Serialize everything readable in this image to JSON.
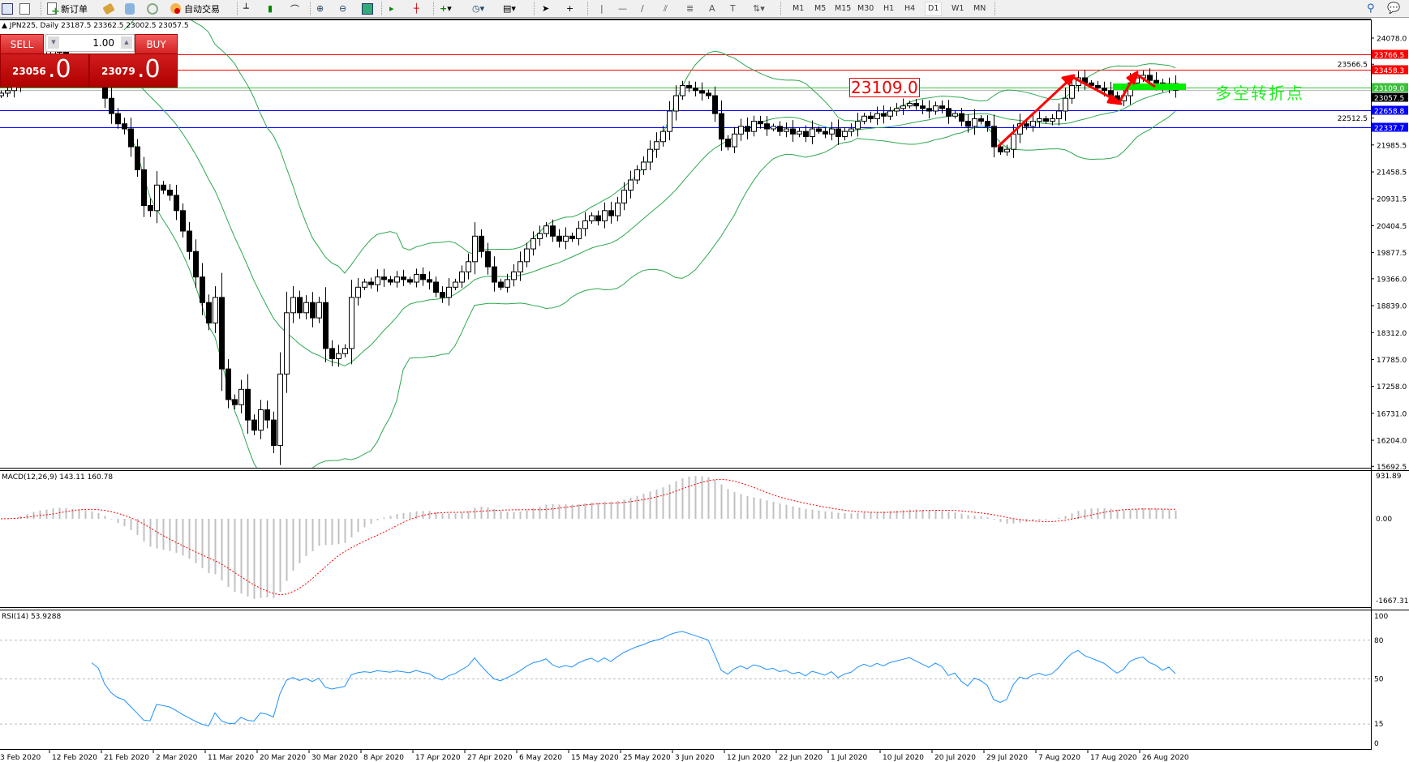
{
  "toolbar": {
    "new_order_label": "新订单",
    "auto_trade_label": "自动交易",
    "timeframes": [
      "M1",
      "M5",
      "M15",
      "M30",
      "H1",
      "H4",
      "D1",
      "W1",
      "MN"
    ],
    "active_timeframe": "D1"
  },
  "chart_header": {
    "symbol": "JPN225",
    "period": "Daily",
    "ohlc_text": "JPN225, Daily  23187.5 23362.5 23002.5 23057.5"
  },
  "trade_panel": {
    "sell_label": "SELL",
    "buy_label": "BUY",
    "lot": "1.00",
    "sell_price_main": "23056",
    "sell_price_big": ".0",
    "buy_price_main": "23079",
    "buy_price_big": ".0"
  },
  "annotations": {
    "price_box": "23109.0",
    "pivot_text": "多空转折点"
  },
  "macd": {
    "label": "MACD(12,26,9) 143.11 160.78",
    "ticks": [
      "931.89",
      "0.00",
      "-1667.31"
    ]
  },
  "rsi": {
    "label": "RSI(14) 53.9288",
    "ticks": [
      "100",
      "80",
      "50",
      "15",
      "0"
    ]
  },
  "chart_data": {
    "type": "candlestick",
    "price_axis_ticks": [
      "24078.0",
      "23566.5",
      "22512.5",
      "21985.5",
      "21458.5",
      "20931.5",
      "20404.5",
      "19877.5",
      "19366.0",
      "18839.0",
      "18312.0",
      "17785.0",
      "17258.0",
      "16731.0",
      "16204.0",
      "15692.5"
    ],
    "levels": [
      {
        "price": 23766.5,
        "label": "23766.5",
        "color": "#ff0000"
      },
      {
        "price": 23458.3,
        "label": "23458.3",
        "color": "#ff0000"
      },
      {
        "price": 23109.0,
        "label": "23109.0",
        "color": "#3cbf3c"
      },
      {
        "price": 23057.5,
        "label": "23057.5",
        "color": "#000000"
      },
      {
        "price": 22658.8,
        "label": "22658.8",
        "color": "#0000ff"
      },
      {
        "price": 22337.7,
        "label": "22337.7",
        "color": "#0000ff"
      }
    ],
    "date_labels": [
      "3 Feb 2020",
      "12 Feb 2020",
      "21 Feb 2020",
      "2 Mar 2020",
      "11 Mar 2020",
      "20 Mar 2020",
      "30 Mar 2020",
      "8 Apr 2020",
      "17 Apr 2020",
      "27 Apr 2020",
      "6 May 2020",
      "15 May 2020",
      "25 May 2020",
      "3 Jun 2020",
      "12 Jun 2020",
      "22 Jun 2020",
      "1 Jul 2020",
      "10 Jul 2020",
      "20 Jul 2020",
      "29 Jul 2020",
      "7 Aug 2020",
      "17 Aug 2020",
      "26 Aug 2020"
    ],
    "indicators": [
      "Bollinger Bands",
      "MACD(12,26,9)",
      "RSI(14)"
    ],
    "colors": {
      "bands": "#2ea84f",
      "macd_hist": "#c0c0c0",
      "macd_signal": "#ff0000",
      "rsi": "#1e90ff"
    },
    "closes": [
      23000,
      23050,
      23200,
      23400,
      23650,
      23800,
      23750,
      23700,
      23850,
      23800,
      23650,
      23550,
      23600,
      23500,
      23400,
      23300,
      22900,
      22600,
      22400,
      22300,
      21950,
      21500,
      20800,
      20700,
      21200,
      21100,
      21000,
      20700,
      20300,
      19900,
      19400,
      18900,
      18500,
      19000,
      17600,
      17000,
      16900,
      17200,
      16600,
      16400,
      16800,
      16600,
      16100,
      17500,
      18700,
      19000,
      18700,
      18900,
      18600,
      18900,
      18000,
      17800,
      17900,
      18000,
      19000,
      19200,
      19300,
      19250,
      19400,
      19350,
      19300,
      19400,
      19350,
      19300,
      19450,
      19350,
      19300,
      19100,
      19000,
      19200,
      19300,
      19500,
      19700,
      20200,
      19900,
      19600,
      19300,
      19200,
      19350,
      19500,
      19700,
      19950,
      20150,
      20250,
      20400,
      20200,
      20100,
      20200,
      20150,
      20350,
      20500,
      20600,
      20500,
      20700,
      20600,
      20850,
      21100,
      21300,
      21500,
      21650,
      21900,
      22050,
      22250,
      22650,
      22950,
      23150,
      23100,
      23050,
      23000,
      22950,
      22600,
      22100,
      21950,
      22200,
      22350,
      22250,
      22450,
      22400,
      22300,
      22350,
      22250,
      22300,
      22200,
      22250,
      22150,
      22300,
      22250,
      22200,
      22300,
      22150,
      22250,
      22300,
      22450,
      22550,
      22500,
      22600,
      22550,
      22650,
      22700,
      22750,
      22800,
      22750,
      22700,
      22650,
      22750,
      22700,
      22550,
      22600,
      22450,
      22350,
      22500,
      22450,
      22350,
      21950,
      21850,
      21900,
      22200,
      22400,
      22350,
      22450,
      22500,
      22450,
      22500,
      22650,
      22900,
      23150,
      23300,
      23200,
      23150,
      23100,
      23050,
      22950,
      22850,
      22950,
      23200,
      23300,
      23350,
      23250,
      23200,
      23100,
      23187.5,
      23057.5
    ]
  }
}
